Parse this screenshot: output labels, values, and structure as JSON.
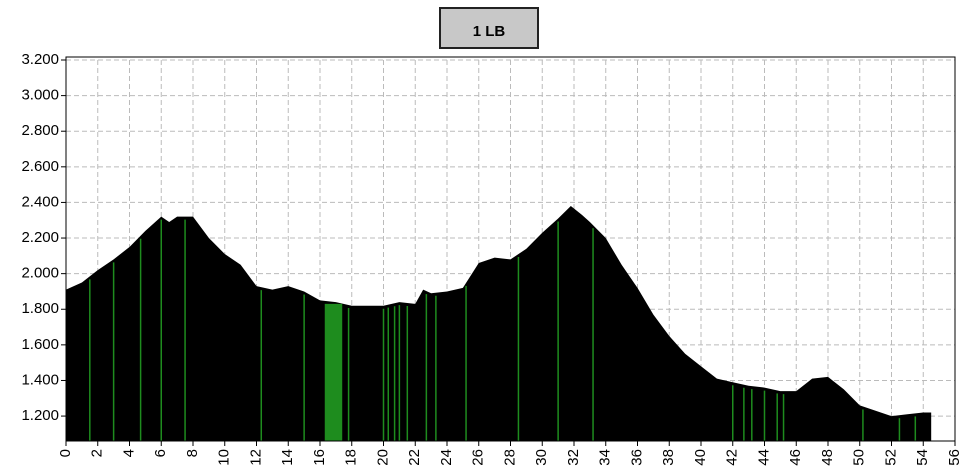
{
  "chart_data": {
    "type": "area",
    "title": "1 LB",
    "color": "#000000",
    "highlight_color": "#1e8c1e",
    "x": [
      0,
      1,
      2,
      3,
      4,
      5,
      6,
      6.5,
      7,
      8,
      9,
      10,
      11,
      12,
      13,
      14,
      15,
      16,
      17,
      18,
      19,
      20,
      21,
      22,
      22.5,
      23,
      24,
      25,
      26,
      27,
      28,
      29,
      30,
      31,
      31.8,
      32.5,
      33,
      34,
      35,
      36,
      37,
      38,
      39,
      40,
      41,
      42,
      43,
      44,
      45,
      46,
      47,
      48,
      49,
      50,
      51,
      52,
      53,
      54,
      54.5
    ],
    "values": [
      1910,
      1950,
      2020,
      2080,
      2150,
      2240,
      2320,
      2290,
      2320,
      2320,
      2200,
      2110,
      2050,
      1930,
      1910,
      1930,
      1900,
      1850,
      1840,
      1820,
      1820,
      1820,
      1840,
      1830,
      1910,
      1890,
      1900,
      1920,
      2060,
      2090,
      2080,
      2140,
      2230,
      2310,
      2380,
      2330,
      2290,
      2200,
      2050,
      1920,
      1770,
      1650,
      1550,
      1480,
      1410,
      1390,
      1370,
      1360,
      1340,
      1340,
      1410,
      1420,
      1350,
      1260,
      1230,
      1200,
      1210,
      1220,
      1220
    ],
    "highlights": [
      1.5,
      3,
      4.7,
      6,
      7.5,
      12.3,
      15,
      17.8,
      20,
      20.3,
      20.7,
      21,
      21.5,
      22.7,
      23.3,
      25.2,
      28.5,
      31,
      33.2,
      42,
      42.7,
      43.2,
      44,
      44.8,
      45.2,
      50.2,
      52.5,
      53.5
    ],
    "highlight_band": [
      16.3,
      17.4
    ],
    "xlim": [
      0,
      56
    ],
    "xticks": [
      0,
      2,
      4,
      6,
      8,
      10,
      12,
      14,
      16,
      18,
      20,
      22,
      24,
      26,
      28,
      30,
      32,
      34,
      36,
      38,
      40,
      42,
      44,
      46,
      48,
      50,
      52,
      54,
      56
    ],
    "ylim": [
      1060,
      3200
    ],
    "yticks": [
      {
        "value": 1200,
        "label": "1.200"
      },
      {
        "value": 1400,
        "label": "1.400"
      },
      {
        "value": 1600,
        "label": "1.600"
      },
      {
        "value": 1800,
        "label": "1.800"
      },
      {
        "value": 2000,
        "label": "2.000"
      },
      {
        "value": 2200,
        "label": "2.200"
      },
      {
        "value": 2400,
        "label": "2.400"
      },
      {
        "value": 2600,
        "label": "2.600"
      },
      {
        "value": 2800,
        "label": "2.800"
      },
      {
        "value": 3000,
        "label": "3.000"
      },
      {
        "value": 3200,
        "label": "3.200"
      }
    ],
    "grid": true
  }
}
